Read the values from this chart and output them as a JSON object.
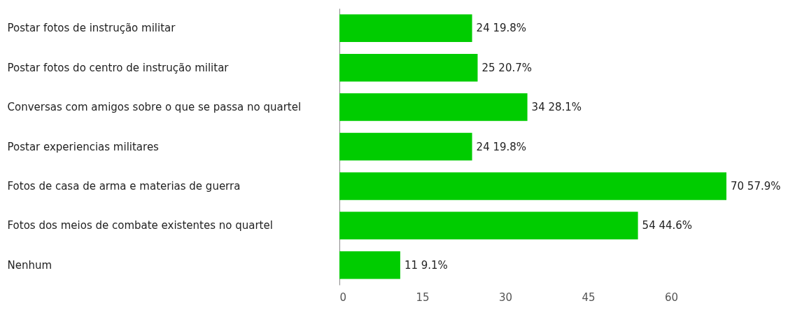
{
  "chart_data": {
    "type": "bar",
    "orientation": "horizontal",
    "categories": [
      "Postar fotos de instrução militar",
      "Postar fotos do centro de  instrução militar",
      "Conversas com amigos sobre o que se passa no quartel",
      "Postar experiencias militares",
      "Fotos de casa de arma e materias de guerra",
      "Fotos dos meios de combate existentes no quartel",
      "Nenhum"
    ],
    "values": [
      24,
      25,
      34,
      24,
      70,
      54,
      11
    ],
    "value_labels": [
      "24  19.8%",
      "25  20.7%",
      "34  28.1%",
      "24  19.8%",
      "70  57.9%",
      "54  44.6%",
      "11  9.1%"
    ],
    "color": "#00cc00",
    "xlim": [
      0,
      70
    ],
    "xticks": [
      0,
      15,
      30,
      45,
      60
    ]
  }
}
